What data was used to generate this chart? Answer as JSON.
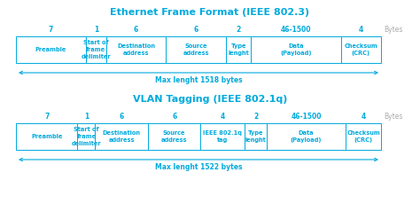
{
  "title1": "Ethernet Frame Format (IEEE 802.3)",
  "title2": "VLAN Tagging (IEEE 802.1q)",
  "bg_color": "#ffffff",
  "text_color": "#00aadd",
  "border_color": "#00aadd",
  "bytes_label": "Bytes",
  "max_label1": "Max lenght 1518 bytes",
  "max_label2": "Max lenght 1522 bytes",
  "gray_color": "#aaaaaa",
  "frame1": {
    "fields": [
      "Preamble",
      "Start of\nframe\ndelimiter",
      "Destination\naddress",
      "Source\naddress",
      "Type\nlenght",
      "Data\n(Payload)",
      "Checksum\n(CRC)"
    ],
    "sizes": [
      7,
      1,
      6,
      6,
      2,
      46,
      4
    ],
    "size_labels": [
      "7",
      "1",
      "6",
      "6",
      "2",
      "46-1500",
      "4"
    ],
    "display_widths": [
      7,
      2,
      6,
      6,
      2.5,
      9,
      4
    ]
  },
  "frame2": {
    "fields": [
      "Preamble",
      "Start of\nframe\ndelimiter",
      "Destination\naddress",
      "Source\naddress",
      "IEEE 802.1q\ntag",
      "Type\nlenght",
      "Data\n(Payload)",
      "Checksum\n(CRC)"
    ],
    "sizes": [
      7,
      1,
      6,
      6,
      4,
      2,
      46,
      4
    ],
    "size_labels": [
      "7",
      "1",
      "6",
      "6",
      "4",
      "2",
      "46-1500",
      "4"
    ],
    "display_widths": [
      7,
      2,
      6,
      6,
      5,
      2.5,
      9,
      4
    ]
  },
  "figw": 4.74,
  "figh": 2.47,
  "dpi": 100
}
